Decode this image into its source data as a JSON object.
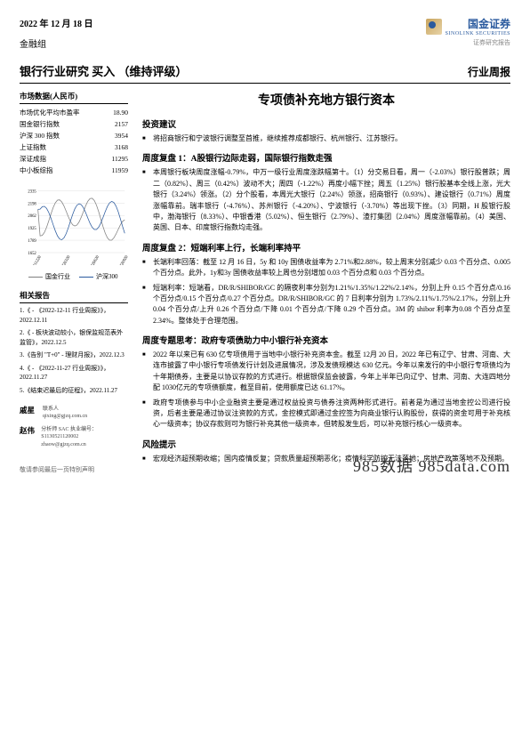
{
  "header": {
    "date": "2022 年 12 月 18 日",
    "logo_name": "国金证券",
    "logo_en": "SINOLINK SECURITIES",
    "logo_tag": "证券研究报告",
    "group": "金融组"
  },
  "title_bar": {
    "left": "银行行业研究  买入 （维持评级）",
    "right": "行业周报"
  },
  "market_data": {
    "heading": "市场数据(人民币)",
    "rows": [
      {
        "label": "市场优化平均市盈率",
        "value": "18.90"
      },
      {
        "label": "国金银行指数",
        "value": "2157"
      },
      {
        "label": "沪深 300 指数",
        "value": "3954"
      },
      {
        "label": "上证指数",
        "value": "3168"
      },
      {
        "label": "深证成指",
        "value": "11295"
      },
      {
        "label": "中小板综指",
        "value": "11959"
      }
    ]
  },
  "chart": {
    "y_ticks": [
      2335,
      2198,
      2062,
      1925,
      1789,
      1652
    ],
    "x_ticks": [
      "211220",
      "220320",
      "220620",
      "220920"
    ],
    "series": [
      {
        "name": "国金行业",
        "color": "#808080"
      },
      {
        "name": "沪深300",
        "color": "#2a5a9e"
      }
    ],
    "line1_color": "#808080",
    "line2_color": "#2a5a9e",
    "grid_color": "#ccc"
  },
  "related": {
    "heading": "相关报告",
    "items": [
      "1.《 - 《2022-12-11 行业周报》》，2022.12.11",
      "2.《 - 板块波动较小，银保监规范表外监管》，2022.12.5",
      "3.《告别 \"T+0\" - 理财月报》，2022.12.3",
      "4.《 - 《2022-11-27 行业周报》》，2022.11.27",
      "5.《结束迟最后的征程》，2022.11.27"
    ]
  },
  "authors": [
    {
      "name": "戚星",
      "role": "联系人",
      "email": "qixing@gjzq.com.cn"
    },
    {
      "name": "赵伟",
      "role": "分析师 SAC 执业编号：S1130521120002",
      "email": "zhaow@gjzq.com.cn"
    }
  ],
  "main_title": "专项债补充地方银行资本",
  "sections": [
    {
      "heading": "投资建议",
      "bullets": [
        "将招商银行和宁波银行调整至首推，继续推荐成都银行、杭州银行、江苏银行。"
      ]
    },
    {
      "heading": "周度复盘 1：A股银行边际走弱，国际银行指数走强",
      "bullets": [
        "本周银行板块周度涨幅-0.79%，中万一级行业周度涨跌幅第十。（1）分交易日看，周一（-2.03%）银行股普跌；周二（0.82%）、周三（0.42%）波动不大；周四（-1.22%）再度小幅下挫；周五（1.25%）银行股基本全线上涨，光大银行（3.24%）领涨。（2）分个股看，本周光大银行（2.24%）领涨，招商银行（0.93%）、建设银行（0.71%）周度涨幅靠前。瑞丰银行（-4.76%）、苏州银行（-4.20%）、宁波银行（-3.70%）等出现下挫。（3）同期，H 股银行股中，渤海银行（8.33%）、中银香港（5.02%）、恒生银行（2.79%）、渣打集团（2.04%）周度涨幅靠前。（4）美国、英国、日本、印度银行指数均走强。"
      ]
    },
    {
      "heading": "周度复盘 2：短端利率上行，长端利率持平",
      "bullets": [
        "长端利率回落：截至 12 月 16 日，5y 和 10y 国债收益率为 2.71%和2.88%，较上周末分别减少 0.03 个百分点、0.005 个百分点。此外，1y和3y 国债收益率较上周也分别增加 0.03 个百分点和 0.03 个百分点。",
        "短端利率：短端看，DR/R/SHIBOR/GC 的隔夜利率分别为1.21%/1.35%/1.22%/2.14%，分别上升 0.15 个百分点/0.16 个百分点/0.15 个百分点/0.27 个百分点。DR/R/SHIBOR/GC 的 7 日利率分别为 1.73%/2.11%/1.75%/2.17%，分别上升 0.04 个百分点/上升 0.26 个百分点/下降 0.01 个百分点/下降 0.29 个百分点。3M 的 shibor 利率为0.08 个百分点至 2.34%。整体处于合理范围。"
      ]
    },
    {
      "heading": "周度专题思考：政府专项债助力中小银行补充资本",
      "bullets": [
        "2022 年以来已有 630 亿专项债用于当地中小银行补充资本金。截至 12月 20 日，2022 年已有辽宁、甘肃、河南、大连市披露了中小银行专项债发行计划及进展情况，涉及发债规模达 630 亿元。今年以来发行的中小银行专项债均为十年期债券，主要是以协议存款的方式进行。根据银保监会披露，今年上半年已向辽宁、甘肃、河南、大连四地分配 1030亿元的专项债额度，截至目前，使用额度已达 61.17%。",
        "政府专项债参与中小企业融资主要是通过权益投资与债券注资两种形式进行。前者是为通过当地金控公司进行投资，后者主要是通过协议注资款的方式，金控模式即通过金控签为向商业银行认购股份，获得的资金可用于补充核心一级资本；协议存款则可为银行补充其他一级资本，但转股发生后，可以补充银行核心一级资本。"
      ]
    },
    {
      "heading": "风险提示",
      "bullets": [
        "宏观经济超预期收缩；国内疫情反复；贷款质量超预期恶化；疫情科学防控无法落地；房地产政策落地不及预期。"
      ]
    }
  ],
  "footer": {
    "disclaimer": "敬请参阅最后一页特别声明",
    "watermark": "985数据 985data.com"
  }
}
